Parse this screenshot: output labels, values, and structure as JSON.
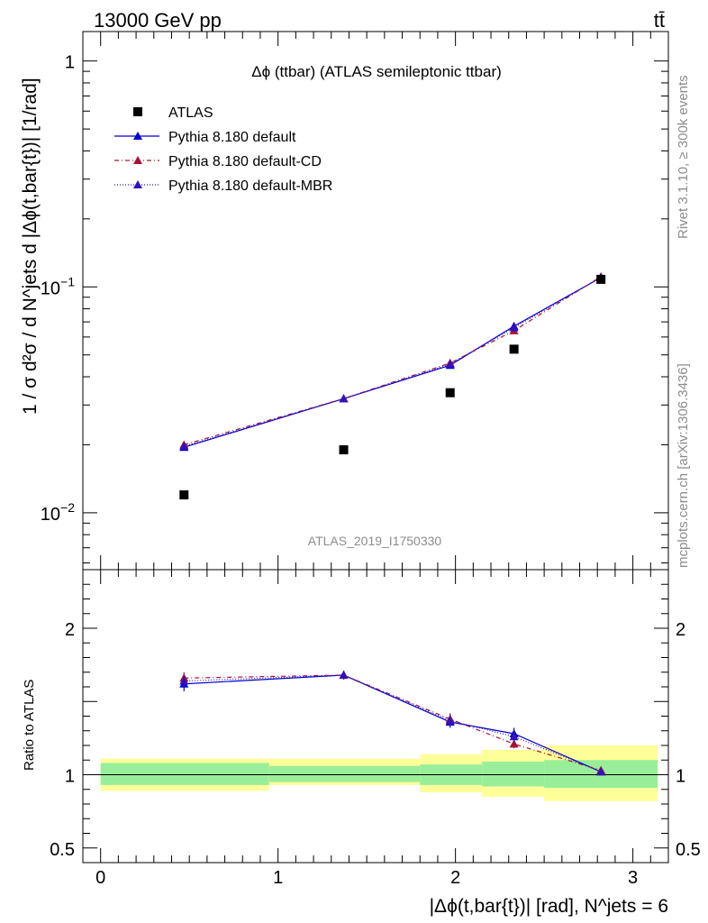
{
  "header": {
    "energy_label": "13000 GeV pp",
    "process_label": "tt̄"
  },
  "side_labels": {
    "rivet": "Rivet 3.1.10, ≥ 300k events",
    "mcplots": "mcplots.cern.ch [arXiv:1306.3436]"
  },
  "chart_data": {
    "type": "line",
    "title": "Δϕ (ttbar) (ATLAS semileptonic ttbar)",
    "analysis_label": "ATLAS_2019_I1750330",
    "ylabel": "1 / σ d²σ / d N^jets d |Δϕ(t,bar{t})| [1/rad]",
    "xlabel": "|Δϕ(t,bar{t})| [rad], N^jets = 6",
    "ratio_ylabel": "Ratio to ATLAS",
    "xlim": [
      -0.1,
      3.2
    ],
    "ylim_main": [
      0.0056,
      1.35
    ],
    "ylim_ratio": [
      0.4,
      2.4
    ],
    "yscale_main": "log",
    "x_ticks": [
      "0",
      "1",
      "2",
      "3"
    ],
    "y_ticks_main": [
      {
        "v": 0.01,
        "base": "10",
        "exp": "−2"
      },
      {
        "v": 0.1,
        "base": "10",
        "exp": "−1"
      },
      {
        "v": 1,
        "base": "1",
        "exp": ""
      }
    ],
    "y_ticks_ratio": [
      "2",
      "1",
      "0.5"
    ],
    "legend_position": "top-left",
    "data": {
      "name": "ATLAS",
      "x": [
        0.47,
        1.37,
        1.97,
        2.33,
        2.82
      ],
      "y": [
        0.012,
        0.019,
        0.034,
        0.053,
        0.108
      ]
    },
    "bins": [
      [
        0.0,
        0.95
      ],
      [
        0.95,
        1.8
      ],
      [
        1.8,
        2.15
      ],
      [
        2.15,
        2.5
      ],
      [
        2.5,
        3.14
      ]
    ],
    "uncertainty_bands": {
      "inner": [
        [
          0.93,
          1.08
        ],
        [
          0.95,
          1.06
        ],
        [
          0.93,
          1.07
        ],
        [
          0.92,
          1.09
        ],
        [
          0.91,
          1.1
        ]
      ],
      "outer": [
        [
          0.89,
          1.11
        ],
        [
          0.93,
          1.11
        ],
        [
          0.88,
          1.14
        ],
        [
          0.85,
          1.17
        ],
        [
          0.82,
          1.2
        ]
      ]
    },
    "series": [
      {
        "name": "Pythia 8.180 default",
        "color": "#0000cc",
        "dash": "none",
        "x": [
          0.47,
          1.37,
          1.97,
          2.33,
          2.82
        ],
        "y": [
          0.0195,
          0.032,
          0.045,
          0.067,
          0.11
        ],
        "ratio": [
          1.62,
          1.68,
          1.36,
          1.28,
          1.02
        ],
        "ratio_err": [
          0.05,
          0.03,
          0.04,
          0.04,
          0.0
        ]
      },
      {
        "name": "Pythia 8.180 default-CD",
        "color": "#aa1133",
        "dash": "5,3,1,3",
        "x": [
          0.47,
          1.37,
          1.97,
          2.33,
          2.82
        ],
        "y": [
          0.02,
          0.032,
          0.046,
          0.064,
          0.111
        ],
        "ratio": [
          1.66,
          1.68,
          1.38,
          1.21,
          1.03
        ],
        "ratio_err": [
          0.04,
          0.03,
          0.04,
          0.03,
          0.0
        ]
      },
      {
        "name": "Pythia 8.180 default-MBR",
        "color": "#3311bb",
        "dash": "1,2",
        "x": [
          0.47,
          1.37,
          1.97,
          2.33,
          2.82
        ],
        "y": [
          0.0197,
          0.032,
          0.0455,
          0.066,
          0.11
        ],
        "ratio": [
          1.64,
          1.68,
          1.37,
          1.26,
          1.02
        ],
        "ratio_err": [
          0.04,
          0.03,
          0.04,
          0.04,
          0.0
        ]
      }
    ]
  }
}
